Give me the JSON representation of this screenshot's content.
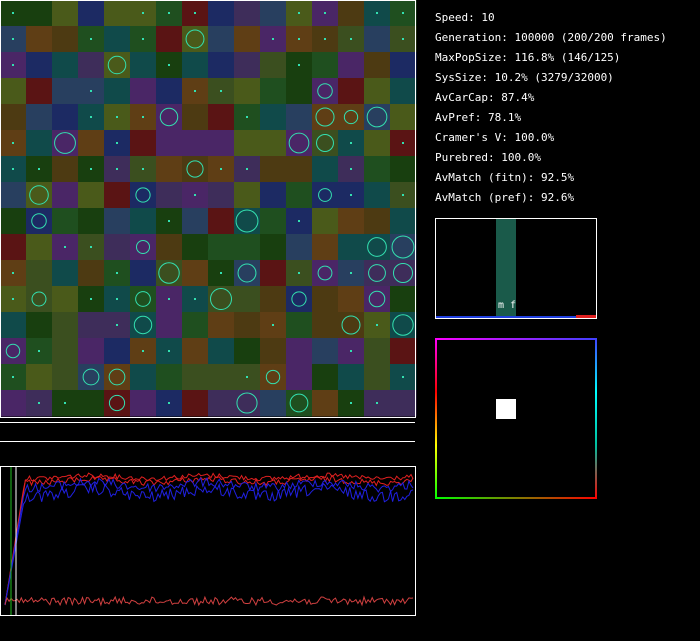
{
  "stats": {
    "speed": "Speed: 10",
    "generation": "Generation: 100000 (200/200 frames)",
    "max_pop_size": "MaxPopSize: 116.8% (146/125)",
    "sys_size": "SysSize: 10.2% (3279/32000)",
    "av_car_cap": "AvCarCap: 87.4%",
    "av_pref": "AvPref: 78.1%",
    "cramers_v": "Cramer's V: 100.0%",
    "purebred": "Purebred: 100.0%",
    "av_match_fitn": "AvMatch (fitn): 92.5%",
    "av_match_pref": "AvMatch (pref): 92.6%"
  },
  "histogram": {
    "labels": [
      "m",
      "f"
    ],
    "bar_level": 1.0
  },
  "colors": {
    "background": "#000000",
    "text": "#ffffff",
    "agent": "#33e0b0",
    "hist_bar": "#1a5a4a",
    "series_red": "#e02020",
    "series_blue": "#2020e0",
    "series_low": "#d04040",
    "series_green": "#20c020",
    "palette": [
      "#3b4f1f",
      "#283f5f",
      "#1c2a63",
      "#4a2666",
      "#5f3e15",
      "#104a4a",
      "#5a1414",
      "#183f0f",
      "#4a5a1a",
      "#1f4f1f",
      "#3e2d5a",
      "#4d3a12"
    ]
  }
}
